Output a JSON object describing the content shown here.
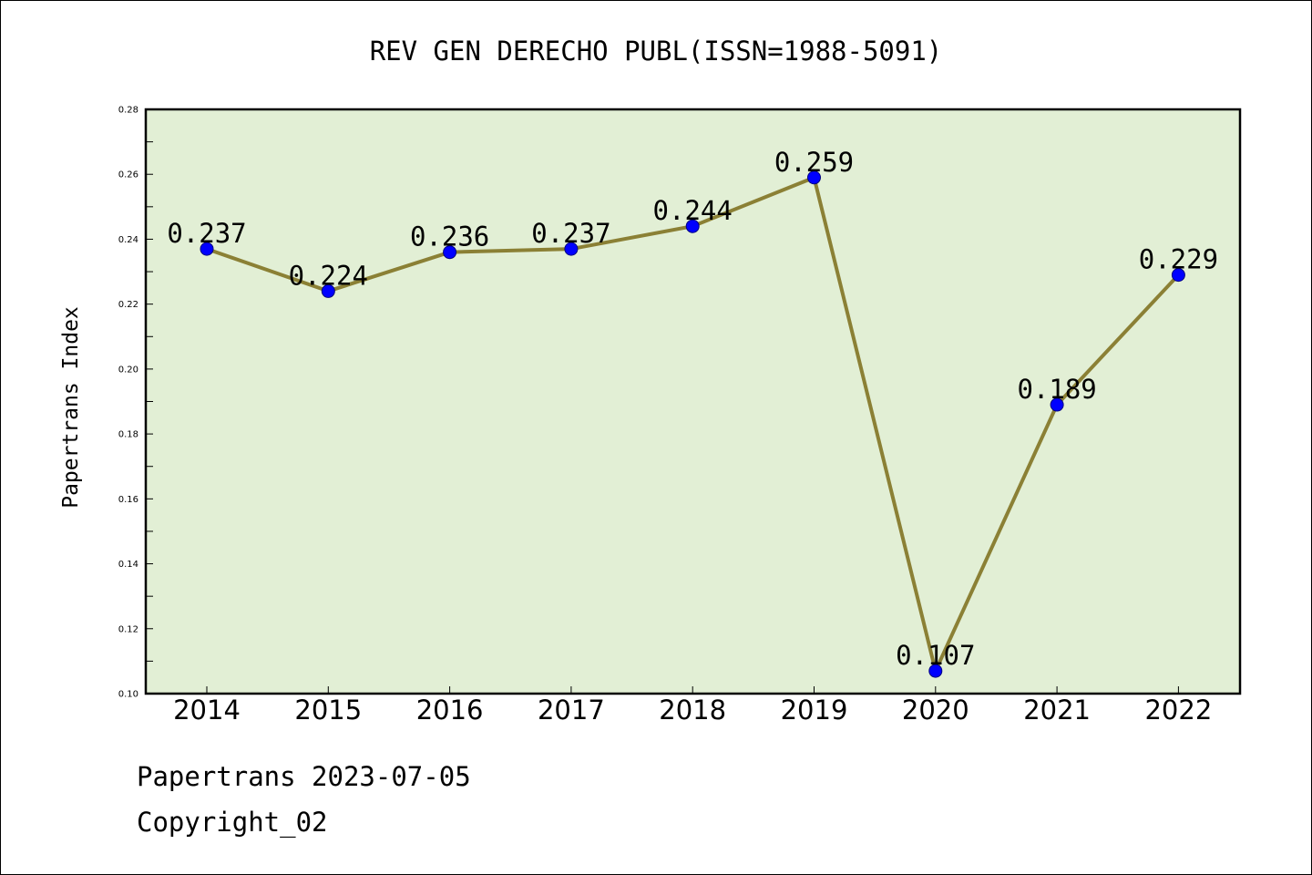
{
  "chart_data": {
    "type": "line",
    "title": "REV GEN DERECHO PUBL(ISSN=1988-5091)",
    "xlabel": "",
    "ylabel": "Papertrans Index",
    "categories": [
      "2014",
      "2015",
      "2016",
      "2017",
      "2018",
      "2019",
      "2020",
      "2021",
      "2022"
    ],
    "series": [
      {
        "values": [
          0.237,
          0.224,
          0.236,
          0.237,
          0.244,
          0.259,
          0.107,
          0.189,
          0.229
        ],
        "labels": [
          "0.237",
          "0.224",
          "0.236",
          "0.237",
          "0.244",
          "0.259",
          "0.107",
          "0.189",
          "0.229"
        ]
      }
    ],
    "ylim": [
      0.1,
      0.28
    ],
    "yticks": [
      "0.10",
      "0.12",
      "0.14",
      "0.16",
      "0.18",
      "0.20",
      "0.22",
      "0.24",
      "0.26",
      "0.28"
    ],
    "grid": false,
    "colors": {
      "plot_background": "#e2efd5",
      "line": "#8b8035",
      "marker": "#0000ff"
    }
  },
  "footer": {
    "line1": "Papertrans 2023-07-05",
    "line2": "Copyright_02"
  }
}
